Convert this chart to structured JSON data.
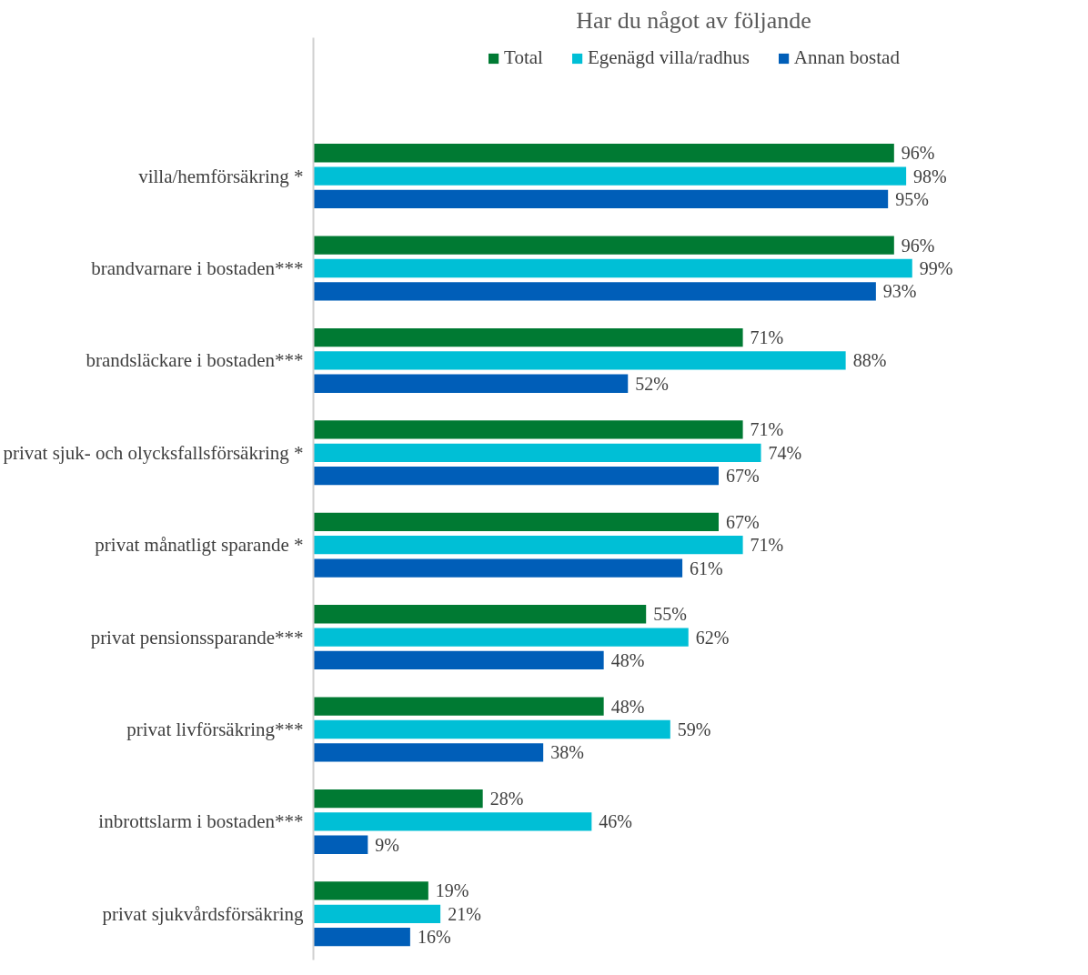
{
  "chart_data": {
    "type": "bar",
    "orientation": "horizontal",
    "title": "Har du något av följande",
    "categories": [
      "villa/hemförsäkring *",
      "brandvarnare i bostaden***",
      "brandsläckare i bostaden***",
      "privat sjuk- och olycksfallsförsäkring *",
      "privat månatligt sparande *",
      "privat pensionssparande***",
      "privat livförsäkring***",
      "inbrottslarm i bostaden***",
      "privat sjukvårdsförsäkring"
    ],
    "series": [
      {
        "name": "Total",
        "color": "#007a33",
        "values": [
          96,
          96,
          71,
          71,
          67,
          55,
          48,
          28,
          19
        ],
        "value_labels": [
          "96%",
          "96%",
          "71%",
          "71%",
          "67%",
          "55%",
          "48%",
          "28%",
          "19%"
        ]
      },
      {
        "name": "Egenägd villa/radhus",
        "color": "#00bfd6",
        "values": [
          98,
          99,
          88,
          74,
          71,
          62,
          59,
          46,
          21
        ],
        "value_labels": [
          "98%",
          "99%",
          "88%",
          "74%",
          "71%",
          "62%",
          "59%",
          "46%",
          "21%"
        ]
      },
      {
        "name": "Annan bostad",
        "color": "#005eb8",
        "values": [
          95,
          93,
          52,
          67,
          61,
          48,
          38,
          9,
          16
        ],
        "value_labels": [
          "95%",
          "93%",
          "52%",
          "67%",
          "61%",
          "48%",
          "38%",
          "9%",
          "16%"
        ]
      }
    ],
    "legend": "top",
    "grid": false,
    "tick_labels": "y"
  }
}
